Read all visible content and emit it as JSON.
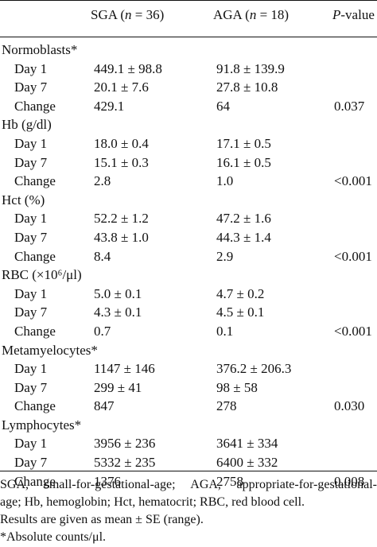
{
  "header": {
    "sga": "SGA (n = 36)",
    "aga": "AGA (n = 18)",
    "pvalue": "P-value"
  },
  "rows": [
    {
      "type": "group",
      "label": "Normoblasts*"
    },
    {
      "type": "data",
      "label": "Day 1",
      "sga": "449.1 ± 98.8",
      "aga": "91.8 ± 139.9",
      "p": ""
    },
    {
      "type": "data",
      "label": "Day 7",
      "sga": "20.1 ± 7.6",
      "aga": "27.8 ± 10.8",
      "p": ""
    },
    {
      "type": "data",
      "label": "Change",
      "sga": "429.1",
      "aga": "64",
      "p": "0.037"
    },
    {
      "type": "group",
      "label": "Hb (g/dl)"
    },
    {
      "type": "data",
      "label": "Day 1",
      "sga": "18.0 ± 0.4",
      "aga": "17.1 ± 0.5",
      "p": ""
    },
    {
      "type": "data",
      "label": "Day 7",
      "sga": "15.1 ± 0.3",
      "aga": "16.1 ± 0.5",
      "p": ""
    },
    {
      "type": "data",
      "label": "Change",
      "sga": "2.8",
      "aga": "1.0",
      "p": "<0.001"
    },
    {
      "type": "group",
      "label": "Hct (%)"
    },
    {
      "type": "data",
      "label": "Day 1",
      "sga": "52.2 ± 1.2",
      "aga": "47.2 ± 1.6",
      "p": ""
    },
    {
      "type": "data",
      "label": "Day 7",
      "sga": "43.8 ± 1.0",
      "aga": "44.3 ± 1.4",
      "p": ""
    },
    {
      "type": "data",
      "label": "Change",
      "sga": "8.4",
      "aga": "2.9",
      "p": "<0.001"
    },
    {
      "type": "group",
      "label": "RBC (×10⁶/μl)"
    },
    {
      "type": "data",
      "label": "Day 1",
      "sga": "5.0 ± 0.1",
      "aga": "4.7 ± 0.2",
      "p": ""
    },
    {
      "type": "data",
      "label": "Day 7",
      "sga": "4.3 ± 0.1",
      "aga": "4.5 ± 0.1",
      "p": ""
    },
    {
      "type": "data",
      "label": "Change",
      "sga": "0.7",
      "aga": "0.1",
      "p": "<0.001"
    },
    {
      "type": "group",
      "label": "Metamyelocytes*"
    },
    {
      "type": "data",
      "label": "Day 1",
      "sga": "1147 ± 146",
      "aga": "376.2 ± 206.3",
      "p": ""
    },
    {
      "type": "data",
      "label": "Day 7",
      "sga": "299 ± 41",
      "aga": "98 ± 58",
      "p": ""
    },
    {
      "type": "data",
      "label": "Change",
      "sga": "847",
      "aga": "278",
      "p": "0.030"
    },
    {
      "type": "group",
      "label": "Lymphocytes*"
    },
    {
      "type": "data",
      "label": "Day 1",
      "sga": "3956 ± 236",
      "aga": "3641 ± 334",
      "p": ""
    },
    {
      "type": "data",
      "label": "Day 7",
      "sga": "5332 ± 235",
      "aga": "6400 ± 332",
      "p": ""
    },
    {
      "type": "data",
      "label": "Change",
      "sga": "1376",
      "aga": "2758",
      "p": "0.008"
    }
  ],
  "footnotes": {
    "line1": "SGA, small-for-gestational-age; AGA, appropriate-for-gestational-",
    "line2": "age; Hb, hemoglobin; Hct, hematocrit; RBC, red blood cell.",
    "line3": "Results are given as mean ± SE (range).",
    "line4": "*Absolute counts/μl."
  }
}
